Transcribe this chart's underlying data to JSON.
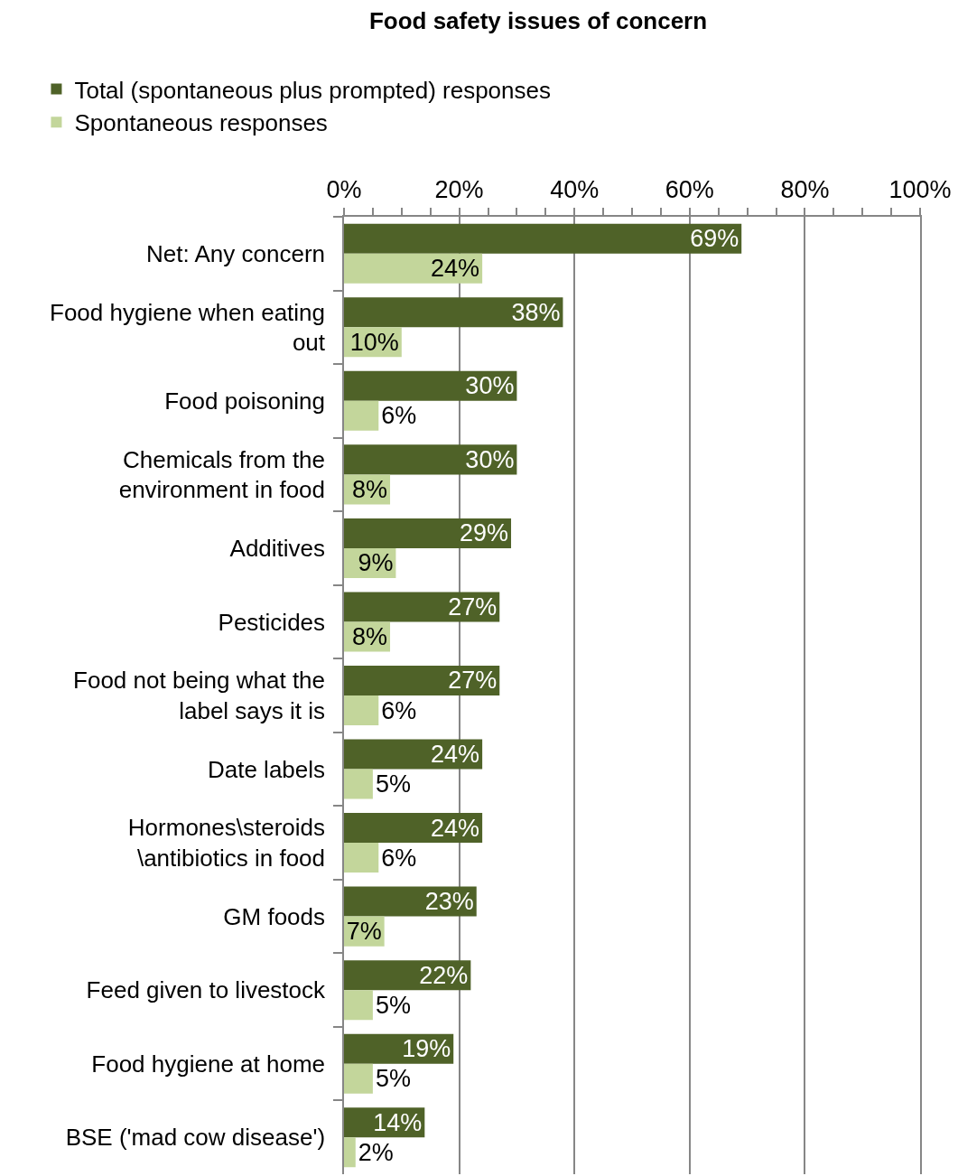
{
  "chart_data": {
    "type": "bar",
    "orientation": "horizontal",
    "title": "Food safety issues of concern",
    "categories": [
      "Net: Any concern",
      "Food hygiene when eating out",
      "Food poisoning",
      "Chemicals from the environment in food",
      "Additives",
      "Pesticides",
      "Food not being what the label says it is",
      "Date labels",
      "Hormones\\steroids \\antibiotics in food",
      "GM foods",
      "Feed given to livestock",
      "Food hygiene at home",
      "BSE ('mad cow disease')"
    ],
    "series": [
      {
        "name": "Total (spontaneous plus prompted) responses",
        "color": "#4f6228",
        "values": [
          69,
          38,
          30,
          30,
          29,
          27,
          27,
          24,
          24,
          23,
          22,
          19,
          14
        ],
        "value_labels": [
          "69%",
          "38%",
          "30%",
          "30%",
          "29%",
          "27%",
          "27%",
          "24%",
          "24%",
          "23%",
          "22%",
          "19%",
          "14%"
        ]
      },
      {
        "name": "Spontaneous responses",
        "color": "#c3d69b",
        "values": [
          24,
          10,
          6,
          8,
          9,
          8,
          6,
          5,
          6,
          7,
          5,
          5,
          2
        ],
        "value_labels": [
          "24%",
          "10%",
          "6%",
          "8%",
          "9%",
          "8%",
          "6%",
          "5%",
          "6%",
          "7%",
          "5%",
          "5%",
          "2%"
        ]
      }
    ],
    "xlim": [
      0,
      100
    ],
    "xticks": [
      {
        "value": 0,
        "label": "0%"
      },
      {
        "value": 5,
        "label": null
      },
      {
        "value": 10,
        "label": null
      },
      {
        "value": 15,
        "label": null
      },
      {
        "value": 20,
        "label": "20%"
      },
      {
        "value": 25,
        "label": null
      },
      {
        "value": 30,
        "label": null
      },
      {
        "value": 35,
        "label": null
      },
      {
        "value": 40,
        "label": "40%"
      },
      {
        "value": 45,
        "label": null
      },
      {
        "value": 50,
        "label": null
      },
      {
        "value": 55,
        "label": null
      },
      {
        "value": 60,
        "label": "60%"
      },
      {
        "value": 65,
        "label": null
      },
      {
        "value": 70,
        "label": null
      },
      {
        "value": 75,
        "label": null
      },
      {
        "value": 80,
        "label": "80%"
      },
      {
        "value": 85,
        "label": null
      },
      {
        "value": 90,
        "label": null
      },
      {
        "value": 95,
        "label": null
      },
      {
        "value": 100,
        "label": "100%"
      }
    ],
    "grid": "x",
    "legend": "top left"
  }
}
